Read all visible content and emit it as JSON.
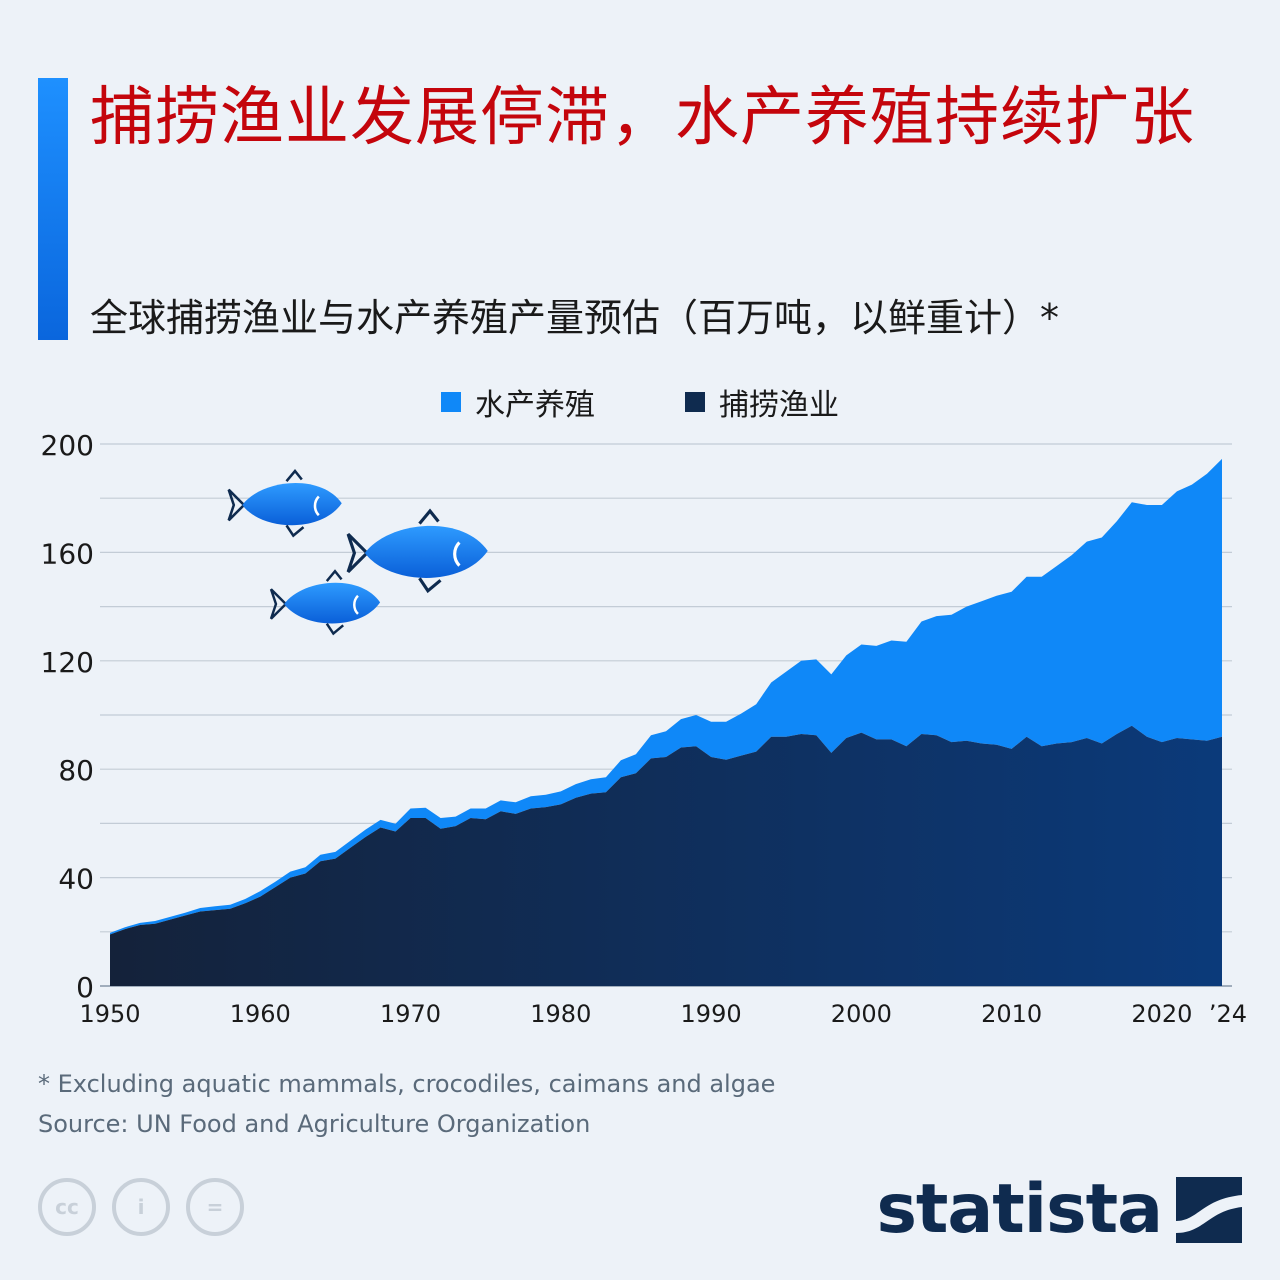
{
  "header": {
    "title": "捕捞渔业发展停滞，水产养殖持续扩张",
    "subtitle": "全球捕捞渔业与水产养殖产量预估（百万吨，以鲜重计）*"
  },
  "legend": {
    "items": [
      {
        "label": "水产养殖",
        "color": "#0f88f8"
      },
      {
        "label": "捕捞渔业",
        "color": "#0f2b4f"
      }
    ]
  },
  "chart_data": {
    "type": "area",
    "stacked": true,
    "ylim": [
      0,
      200
    ],
    "yticks": [
      "0",
      "40",
      "80",
      "120",
      "160",
      "200"
    ],
    "xticks": [
      {
        "year": 1950,
        "label": "1950"
      },
      {
        "year": 1960,
        "label": "1960"
      },
      {
        "year": 1970,
        "label": "1970"
      },
      {
        "year": 1980,
        "label": "1980"
      },
      {
        "year": 1990,
        "label": "1990"
      },
      {
        "year": 2000,
        "label": "2000"
      },
      {
        "year": 2010,
        "label": "2010"
      },
      {
        "year": 2020,
        "label": "2020"
      },
      {
        "year": 2024,
        "label": "’24"
      }
    ],
    "grid": true,
    "legend_position": "top",
    "x": [
      1950,
      1951,
      1952,
      1953,
      1954,
      1955,
      1956,
      1957,
      1958,
      1959,
      1960,
      1961,
      1962,
      1963,
      1964,
      1965,
      1966,
      1967,
      1968,
      1969,
      1970,
      1971,
      1972,
      1973,
      1974,
      1975,
      1976,
      1977,
      1978,
      1979,
      1980,
      1981,
      1982,
      1983,
      1984,
      1985,
      1986,
      1987,
      1988,
      1989,
      1990,
      1991,
      1992,
      1993,
      1994,
      1995,
      1996,
      1997,
      1998,
      1999,
      2000,
      2001,
      2002,
      2003,
      2004,
      2005,
      2006,
      2007,
      2008,
      2009,
      2010,
      2011,
      2012,
      2013,
      2014,
      2015,
      2016,
      2017,
      2018,
      2019,
      2020,
      2021,
      2022,
      2023,
      2024
    ],
    "series": [
      {
        "name": "捕捞渔业",
        "color": "#0f2b4f",
        "values": [
          19,
          21,
          22.5,
          23,
          24.5,
          26,
          27.5,
          28,
          28.5,
          30.5,
          33,
          36.5,
          40,
          41.5,
          46,
          47,
          51,
          55,
          58.5,
          57,
          62,
          62,
          58,
          59,
          62,
          61.5,
          64.5,
          63.5,
          65.5,
          66,
          67,
          69.5,
          71,
          71.5,
          77,
          78.5,
          84,
          84.5,
          88,
          88.5,
          84.5,
          83.5,
          85,
          86.5,
          92,
          92,
          93,
          92.5,
          86,
          91.5,
          93.5,
          91,
          91,
          88.5,
          93,
          92.5,
          90,
          90.5,
          89.5,
          89,
          87.5,
          92,
          88.5,
          89.5,
          90,
          91.5,
          89.5,
          93,
          96,
          92,
          90,
          91.5,
          91,
          90.5,
          92
        ]
      },
      {
        "name": "水产养殖",
        "color": "#0f88f8",
        "values": [
          0.6,
          0.7,
          0.8,
          1,
          1,
          1,
          1.3,
          1.4,
          1.5,
          1.6,
          2,
          2,
          2.2,
          2.3,
          2.4,
          2.5,
          2.6,
          2.7,
          2.8,
          2.9,
          3.5,
          3.8,
          4,
          3.5,
          3.5,
          4,
          4,
          4.3,
          4.5,
          4.6,
          4.8,
          5,
          5.3,
          5.5,
          6.3,
          7,
          8.5,
          9.5,
          10.5,
          11.5,
          13,
          14,
          15.5,
          17.5,
          20,
          24,
          27,
          28,
          29,
          30.5,
          32.5,
          34.5,
          36.5,
          38.5,
          41.5,
          44,
          47,
          49.5,
          52.5,
          55,
          58,
          59,
          62.5,
          65.5,
          69,
          72.5,
          76,
          78.5,
          82.5,
          85.5,
          87.5,
          91,
          94,
          98.5,
          102.5
        ]
      }
    ]
  },
  "footnote": {
    "note": "* Excluding aquatic mammals, crocodiles, caimans and algae",
    "source": "Source: UN Food and Agriculture Organization"
  },
  "footer": {
    "cc_labels": [
      "cc",
      "i",
      "="
    ],
    "logo_text": "statista"
  }
}
